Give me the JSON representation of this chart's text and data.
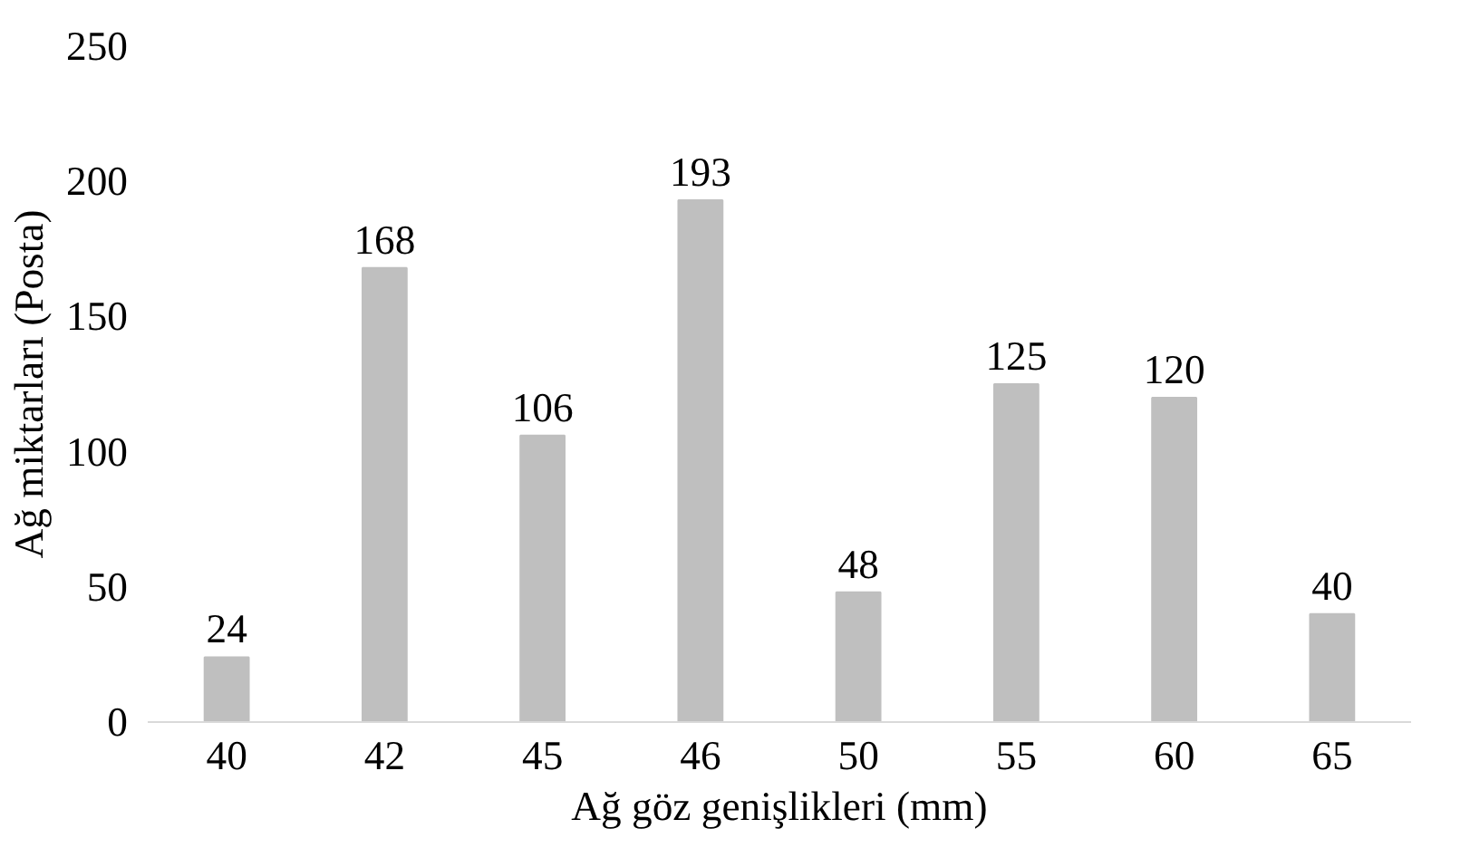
{
  "chart_data": {
    "type": "bar",
    "xlabel": "Ağ göz genişlikleri (mm)",
    "ylabel": "Ağ miktarları (Posta)",
    "categories": [
      "40",
      "42",
      "45",
      "46",
      "50",
      "55",
      "60",
      "65"
    ],
    "values": [
      24,
      168,
      106,
      193,
      48,
      125,
      120,
      40
    ],
    "color": "#bfbfbf",
    "ylim": [
      0,
      250
    ],
    "yticks": [
      0,
      50,
      100,
      150,
      200,
      250
    ],
    "grid": false,
    "data_labels": true
  }
}
